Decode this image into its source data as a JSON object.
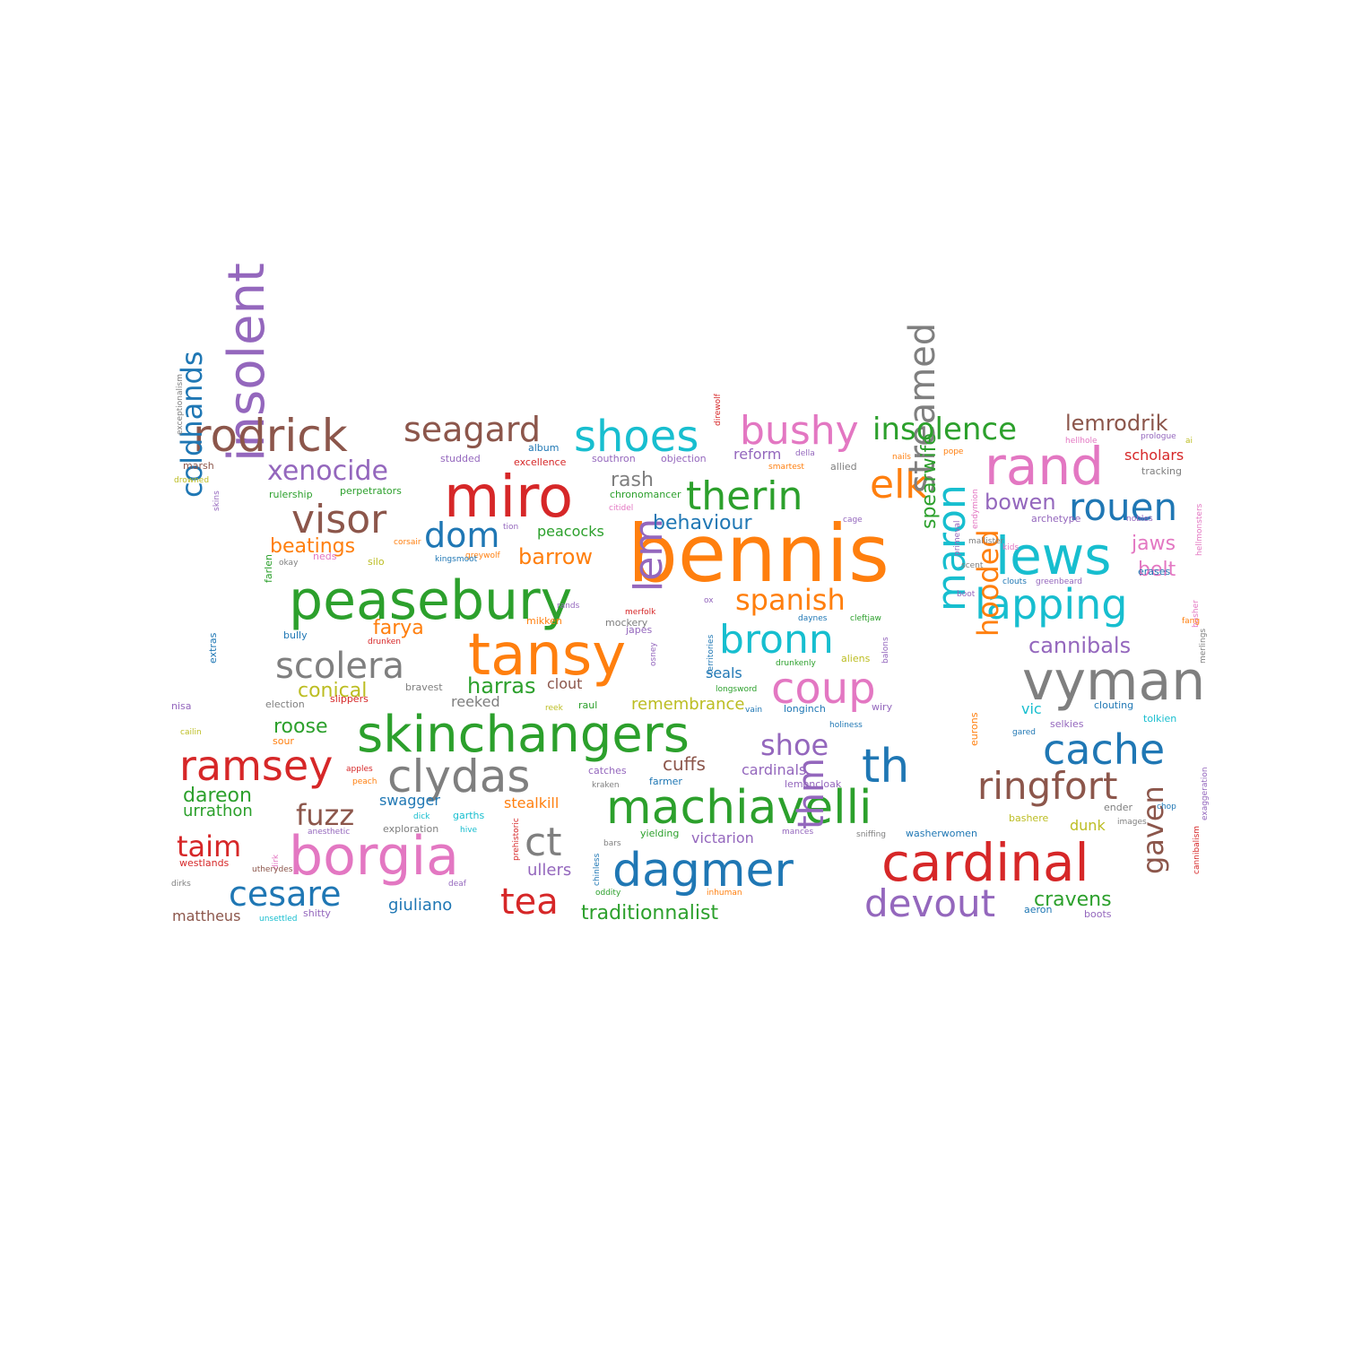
{
  "palette": {
    "blue": "#1f77b4",
    "orange": "#ff7f0e",
    "green": "#2ca02c",
    "red": "#d62728",
    "purple": "#9467bd",
    "brown": "#8c564b",
    "pink": "#e377c2",
    "gray": "#7f7f7f",
    "olive": "#bcbd22",
    "cyan": "#17becf"
  },
  "words": [
    {
      "text": "bennis",
      "color": "orange"
    },
    {
      "text": "miro",
      "color": "red"
    },
    {
      "text": "peasebury",
      "color": "green"
    },
    {
      "text": "tansy",
      "color": "orange"
    },
    {
      "text": "skinchangers",
      "color": "green"
    },
    {
      "text": "borgia",
      "color": "pink"
    },
    {
      "text": "cardinal",
      "color": "red"
    },
    {
      "text": "vyman",
      "color": "gray"
    },
    {
      "text": "machiavelli",
      "color": "green"
    },
    {
      "text": "insolent",
      "color": "purple"
    },
    {
      "text": "rand",
      "color": "pink"
    },
    {
      "text": "lews",
      "color": "cyan"
    },
    {
      "text": "rodrick",
      "color": "brown"
    },
    {
      "text": "shoes",
      "color": "cyan"
    },
    {
      "text": "bushy",
      "color": "pink"
    },
    {
      "text": "therin",
      "color": "green"
    },
    {
      "text": "elk",
      "color": "orange"
    },
    {
      "text": "lapping",
      "color": "cyan"
    },
    {
      "text": "streamed",
      "color": "gray"
    },
    {
      "text": "clydas",
      "color": "gray"
    },
    {
      "text": "dagmer",
      "color": "blue"
    },
    {
      "text": "lem",
      "color": "purple"
    },
    {
      "text": "maron",
      "color": "cyan"
    },
    {
      "text": "th",
      "color": "blue"
    },
    {
      "text": "ringfort",
      "color": "brown"
    },
    {
      "text": "cache",
      "color": "blue"
    },
    {
      "text": "ramsey",
      "color": "red"
    },
    {
      "text": "coup",
      "color": "pink"
    },
    {
      "text": "bronn",
      "color": "cyan"
    },
    {
      "text": "visor",
      "color": "brown"
    },
    {
      "text": "scolera",
      "color": "gray"
    },
    {
      "text": "devout",
      "color": "purple"
    },
    {
      "text": "rouen",
      "color": "blue"
    },
    {
      "text": "seagard",
      "color": "brown"
    },
    {
      "text": "insolence",
      "color": "green"
    },
    {
      "text": "ct",
      "color": "gray"
    },
    {
      "text": "cesare",
      "color": "blue"
    },
    {
      "text": "tea",
      "color": "red"
    },
    {
      "text": "thm",
      "color": "purple"
    },
    {
      "text": "coldhands",
      "color": "blue"
    },
    {
      "text": "xenocide",
      "color": "purple"
    },
    {
      "text": "dom",
      "color": "blue"
    },
    {
      "text": "spanish",
      "color": "orange"
    },
    {
      "text": "shoe",
      "color": "purple"
    },
    {
      "text": "hooded",
      "color": "orange"
    },
    {
      "text": "gaven",
      "color": "brown"
    },
    {
      "text": "fuzz",
      "color": "brown"
    },
    {
      "text": "taim",
      "color": "red"
    },
    {
      "text": "lemrodrik",
      "color": "brown"
    },
    {
      "text": "behaviour",
      "color": "blue"
    },
    {
      "text": "bowen",
      "color": "purple"
    },
    {
      "text": "cannibals",
      "color": "purple"
    },
    {
      "text": "beatings",
      "color": "orange"
    },
    {
      "text": "barrow",
      "color": "orange"
    },
    {
      "text": "harras",
      "color": "green"
    },
    {
      "text": "spearwife",
      "color": "green"
    },
    {
      "text": "jaws",
      "color": "pink"
    },
    {
      "text": "belt",
      "color": "pink"
    },
    {
      "text": "rash",
      "color": "gray"
    },
    {
      "text": "farya",
      "color": "orange"
    },
    {
      "text": "conical",
      "color": "olive"
    },
    {
      "text": "roose",
      "color": "green"
    },
    {
      "text": "dareon",
      "color": "green"
    },
    {
      "text": "cuffs",
      "color": "brown"
    },
    {
      "text": "traditionnalist",
      "color": "green"
    },
    {
      "text": "cravens",
      "color": "green"
    },
    {
      "text": "urrathon",
      "color": "green"
    },
    {
      "text": "remembrance",
      "color": "olive"
    },
    {
      "text": "cardinals",
      "color": "purple"
    },
    {
      "text": "giuliano",
      "color": "blue"
    },
    {
      "text": "mattheus",
      "color": "brown"
    },
    {
      "text": "ullers",
      "color": "purple"
    },
    {
      "text": "victarion",
      "color": "purple"
    },
    {
      "text": "stealkill",
      "color": "orange"
    },
    {
      "text": "swagger",
      "color": "blue"
    },
    {
      "text": "scholars",
      "color": "red"
    },
    {
      "text": "dunk",
      "color": "olive"
    },
    {
      "text": "reform",
      "color": "purple"
    },
    {
      "text": "peacocks",
      "color": "green"
    },
    {
      "text": "clout",
      "color": "brown"
    },
    {
      "text": "reeked",
      "color": "gray"
    },
    {
      "text": "seals",
      "color": "blue"
    },
    {
      "text": "vic",
      "color": "cyan"
    },
    {
      "text": "westlands",
      "color": "red"
    },
    {
      "text": "studded",
      "color": "purple"
    },
    {
      "text": "album",
      "color": "blue"
    },
    {
      "text": "excellence",
      "color": "red"
    },
    {
      "text": "southron",
      "color": "purple"
    },
    {
      "text": "objection",
      "color": "purple"
    },
    {
      "text": "perpetrators",
      "color": "green"
    },
    {
      "text": "rulership",
      "color": "green"
    },
    {
      "text": "chronomancer",
      "color": "green"
    },
    {
      "text": "citidel",
      "color": "pink"
    },
    {
      "text": "marsh",
      "color": "brown"
    },
    {
      "text": "drowned",
      "color": "olive"
    },
    {
      "text": "tracking",
      "color": "gray"
    },
    {
      "text": "hellhole",
      "color": "pink"
    },
    {
      "text": "prologue",
      "color": "purple"
    },
    {
      "text": "ai",
      "color": "olive"
    },
    {
      "text": "nails",
      "color": "orange"
    },
    {
      "text": "pope",
      "color": "orange"
    },
    {
      "text": "della",
      "color": "purple"
    },
    {
      "text": "smartest",
      "color": "orange"
    },
    {
      "text": "allied",
      "color": "gray"
    },
    {
      "text": "cage",
      "color": "purple"
    },
    {
      "text": "endymion",
      "color": "pink"
    },
    {
      "text": "primeval",
      "color": "purple"
    },
    {
      "text": "mallister",
      "color": "gray"
    },
    {
      "text": "archetype",
      "color": "purple"
    },
    {
      "text": "nobles",
      "color": "purple"
    },
    {
      "text": "hellmonsters",
      "color": "pink"
    },
    {
      "text": "kids",
      "color": "pink"
    },
    {
      "text": "scent",
      "color": "gray"
    },
    {
      "text": "erases",
      "color": "blue"
    },
    {
      "text": "clouts",
      "color": "blue"
    },
    {
      "text": "greenbeard",
      "color": "purple"
    },
    {
      "text": "boot",
      "color": "purple"
    },
    {
      "text": "basher",
      "color": "pink"
    },
    {
      "text": "fang",
      "color": "orange"
    },
    {
      "text": "merlings",
      "color": "gray"
    },
    {
      "text": "daynes",
      "color": "blue"
    },
    {
      "text": "cleftjaw",
      "color": "green"
    },
    {
      "text": "territories",
      "color": "blue"
    },
    {
      "text": "osney",
      "color": "purple"
    },
    {
      "text": "balons",
      "color": "purple"
    },
    {
      "text": "ox",
      "color": "purple"
    },
    {
      "text": "drunkenly",
      "color": "green"
    },
    {
      "text": "aliens",
      "color": "olive"
    },
    {
      "text": "longsword",
      "color": "green"
    },
    {
      "text": "vain",
      "color": "blue"
    },
    {
      "text": "longinch",
      "color": "blue"
    },
    {
      "text": "wiry",
      "color": "purple"
    },
    {
      "text": "holiness",
      "color": "blue"
    },
    {
      "text": "gared",
      "color": "blue"
    },
    {
      "text": "selkies",
      "color": "purple"
    },
    {
      "text": "clouting",
      "color": "blue"
    },
    {
      "text": "tolkien",
      "color": "cyan"
    },
    {
      "text": "eurons",
      "color": "orange"
    },
    {
      "text": "exaggeration",
      "color": "purple"
    },
    {
      "text": "cannibalism",
      "color": "red"
    },
    {
      "text": "chop",
      "color": "blue"
    },
    {
      "text": "ender",
      "color": "gray"
    },
    {
      "text": "images",
      "color": "gray"
    },
    {
      "text": "bashere",
      "color": "olive"
    },
    {
      "text": "aeron",
      "color": "blue"
    },
    {
      "text": "boots",
      "color": "purple"
    },
    {
      "text": "washerwomen",
      "color": "blue"
    },
    {
      "text": "sniffing",
      "color": "gray"
    },
    {
      "text": "mances",
      "color": "purple"
    },
    {
      "text": "yielding",
      "color": "green"
    },
    {
      "text": "bars",
      "color": "gray"
    },
    {
      "text": "chinless",
      "color": "blue"
    },
    {
      "text": "prehistoric",
      "color": "red"
    },
    {
      "text": "oddity",
      "color": "green"
    },
    {
      "text": "inhuman",
      "color": "orange"
    },
    {
      "text": "farmer",
      "color": "blue"
    },
    {
      "text": "lemoncloak",
      "color": "purple"
    },
    {
      "text": "catches",
      "color": "purple"
    },
    {
      "text": "kraken",
      "color": "gray"
    },
    {
      "text": "raul",
      "color": "green"
    },
    {
      "text": "reek",
      "color": "olive"
    },
    {
      "text": "merfolk",
      "color": "red"
    },
    {
      "text": "rands",
      "color": "purple"
    },
    {
      "text": "japes",
      "color": "purple"
    },
    {
      "text": "mockery",
      "color": "gray"
    },
    {
      "text": "mikken",
      "color": "orange"
    },
    {
      "text": "drunken",
      "color": "red"
    },
    {
      "text": "bully",
      "color": "blue"
    },
    {
      "text": "direwolf",
      "color": "red"
    },
    {
      "text": "greywolf",
      "color": "orange"
    },
    {
      "text": "kingsmoot",
      "color": "blue"
    },
    {
      "text": "tion",
      "color": "purple"
    },
    {
      "text": "silo",
      "color": "olive"
    },
    {
      "text": "corsair",
      "color": "orange"
    },
    {
      "text": "neds",
      "color": "pink"
    },
    {
      "text": "okay",
      "color": "gray"
    },
    {
      "text": "skins",
      "color": "purple"
    },
    {
      "text": "farlen",
      "color": "green"
    },
    {
      "text": "extras",
      "color": "blue"
    },
    {
      "text": "exceptionalism",
      "color": "gray"
    },
    {
      "text": "election",
      "color": "gray"
    },
    {
      "text": "slippers",
      "color": "red"
    },
    {
      "text": "bravest",
      "color": "gray"
    },
    {
      "text": "nisa",
      "color": "purple"
    },
    {
      "text": "sour",
      "color": "orange"
    },
    {
      "text": "cailin",
      "color": "olive"
    },
    {
      "text": "apples",
      "color": "red"
    },
    {
      "text": "peach",
      "color": "orange"
    },
    {
      "text": "dick",
      "color": "cyan"
    },
    {
      "text": "garths",
      "color": "cyan"
    },
    {
      "text": "dirk",
      "color": "pink"
    },
    {
      "text": "anesthetic",
      "color": "purple"
    },
    {
      "text": "exploration",
      "color": "gray"
    },
    {
      "text": "hive",
      "color": "cyan"
    },
    {
      "text": "utherydes",
      "color": "brown"
    },
    {
      "text": "deaf",
      "color": "purple"
    },
    {
      "text": "dirks",
      "color": "gray"
    },
    {
      "text": "unsettled",
      "color": "cyan"
    },
    {
      "text": "shitty",
      "color": "purple"
    },
    {
      "text": "channelers",
      "color": "pink"
    }
  ]
}
